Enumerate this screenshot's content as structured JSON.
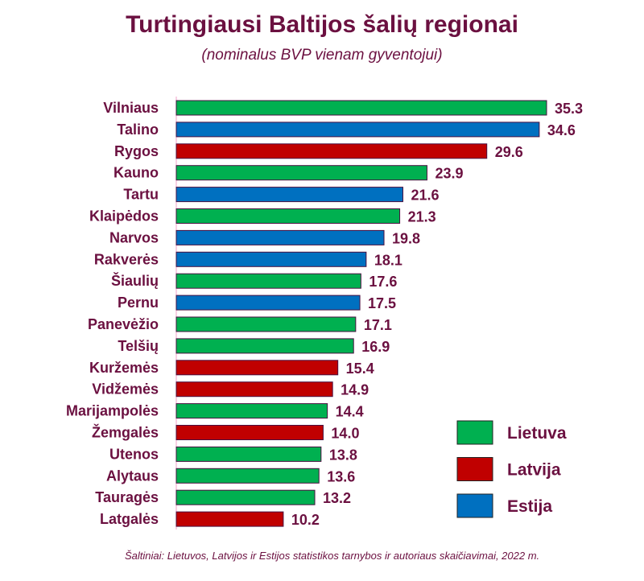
{
  "chart_data": {
    "type": "bar",
    "orientation": "horizontal",
    "title": "Turtingiausi Baltijos šalių regionai",
    "subtitle": "(nominalus BVP vienam gyventojui)",
    "source": "Šaltiniai: Lietuvos, Latvijos ir Estijos statistikos tarnybos  ir autoriaus skaičiavimai, 2022 m.",
    "xlim": [
      0,
      35.3
    ],
    "categories": [
      "Vilniaus",
      "Talino",
      "Rygos",
      "Kauno",
      "Tartu",
      "Klaipėdos",
      "Narvos",
      "Rakverės",
      "Šiaulių",
      "Pernu",
      "Panevėžio",
      "Telšių",
      "Kuržemės",
      "Vidžemės",
      "Marijampolės",
      "Žemgalės",
      "Utenos",
      "Alytaus",
      "Tauragės",
      "Latgalės"
    ],
    "values": [
      35.3,
      34.6,
      29.6,
      23.9,
      21.6,
      21.3,
      19.8,
      18.1,
      17.6,
      17.5,
      17.1,
      16.9,
      15.4,
      14.9,
      14.4,
      14.0,
      13.8,
      13.6,
      13.2,
      10.2
    ],
    "value_labels": [
      "35.3",
      "34.6",
      "29.6",
      "23.9",
      "21.6",
      "21.3",
      "19.8",
      "18.1",
      "17.6",
      "17.5",
      "17.1",
      "16.9",
      "15.4",
      "14.9",
      "14.4",
      "14.0",
      "13.8",
      "13.6",
      "13.2",
      "10.2"
    ],
    "country": [
      "Lietuva",
      "Estija",
      "Latvija",
      "Lietuva",
      "Estija",
      "Lietuva",
      "Estija",
      "Estija",
      "Lietuva",
      "Estija",
      "Lietuva",
      "Lietuva",
      "Latvija",
      "Latvija",
      "Lietuva",
      "Latvija",
      "Lietuva",
      "Lietuva",
      "Lietuva",
      "Latvija"
    ],
    "legend": [
      {
        "name": "Lietuva",
        "color": "#00b050"
      },
      {
        "name": "Latvija",
        "color": "#c00000"
      },
      {
        "name": "Estija",
        "color": "#0070c0"
      }
    ],
    "legend_position": "bottom-right"
  }
}
